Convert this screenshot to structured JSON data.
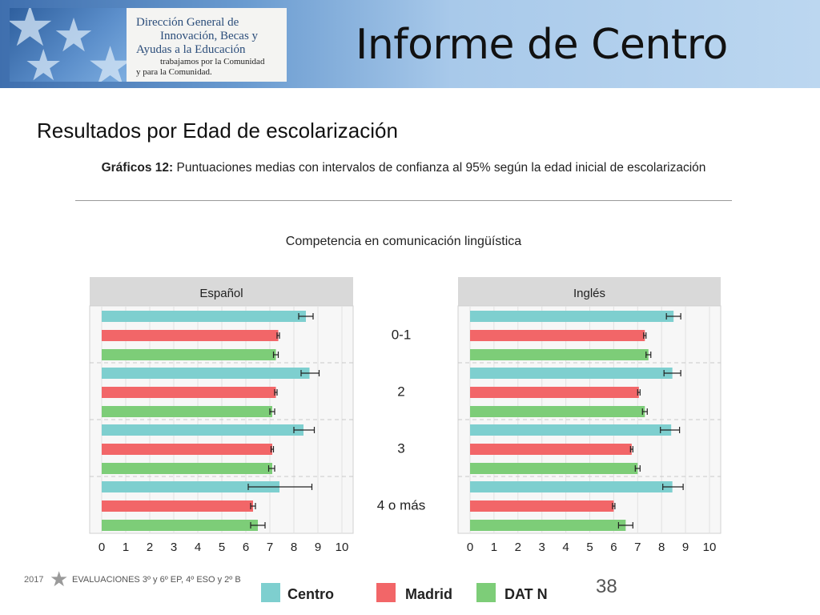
{
  "header": {
    "logo": {
      "line1": "Dirección General de",
      "line2": "Innovación, Becas y",
      "line3": "Ayudas a la Educación",
      "line4": "trabajamos por la Comunidad",
      "line5": "y para la Comunidad."
    },
    "title": "Informe de Centro"
  },
  "subtitle": "Resultados por Edad de escolarización",
  "caption": {
    "label": "Gráficos 12:",
    "text": " Puntuaciones medias con intervalos de confianza al 95% según la edad inicial de escolarización"
  },
  "chart_data": {
    "type": "bar",
    "orientation": "horizontal",
    "title": "Competencia en comunicación lingüística",
    "categories": [
      "0-1",
      "2",
      "3",
      "4 o más"
    ],
    "xlim": [
      0,
      10
    ],
    "xticks": [
      "0",
      "1",
      "2",
      "3",
      "4",
      "5",
      "6",
      "7",
      "8",
      "9",
      "10"
    ],
    "grid": true,
    "legend_position": "bottom",
    "error_bars": "95% confidence interval",
    "series_colors": {
      "Centro": "#7ecfcf",
      "Madrid": "#f26668",
      "DAT N": "#7dcd78"
    },
    "panels": [
      {
        "name": "Español",
        "series": [
          {
            "name": "Centro",
            "values": [
              8.5,
              8.65,
              8.4,
              7.4
            ],
            "ci_low": [
              8.2,
              8.3,
              8.0,
              6.1
            ],
            "ci_high": [
              8.8,
              9.05,
              8.85,
              8.75
            ]
          },
          {
            "name": "Madrid",
            "values": [
              7.35,
              7.25,
              7.1,
              6.3
            ],
            "ci_low": [
              7.3,
              7.2,
              7.05,
              6.2
            ],
            "ci_high": [
              7.4,
              7.3,
              7.15,
              6.4
            ]
          },
          {
            "name": "DAT N",
            "values": [
              7.25,
              7.1,
              7.1,
              6.5
            ],
            "ci_low": [
              7.15,
              7.0,
              6.95,
              6.2
            ],
            "ci_high": [
              7.35,
              7.2,
              7.2,
              6.8
            ]
          }
        ]
      },
      {
        "name": "Inglés",
        "series": [
          {
            "name": "Centro",
            "values": [
              8.5,
              8.45,
              8.4,
              8.45
            ],
            "ci_low": [
              8.2,
              8.1,
              7.95,
              8.05
            ],
            "ci_high": [
              8.8,
              8.8,
              8.75,
              8.9
            ]
          },
          {
            "name": "Madrid",
            "values": [
              7.3,
              7.05,
              6.75,
              6.0
            ],
            "ci_low": [
              7.25,
              7.0,
              6.7,
              5.95
            ],
            "ci_high": [
              7.35,
              7.1,
              6.8,
              6.05
            ]
          },
          {
            "name": "DAT N",
            "values": [
              7.45,
              7.3,
              7.0,
              6.5
            ],
            "ci_low": [
              7.35,
              7.2,
              6.9,
              6.2
            ],
            "ci_high": [
              7.55,
              7.4,
              7.1,
              6.8
            ]
          }
        ]
      }
    ],
    "legend": [
      "Centro",
      "Madrid",
      "DAT N"
    ]
  },
  "footer": {
    "year": "2017",
    "text": "EVALUACIONES  3º y 6º EP, 4º ESO y 2º B",
    "page": "38"
  }
}
